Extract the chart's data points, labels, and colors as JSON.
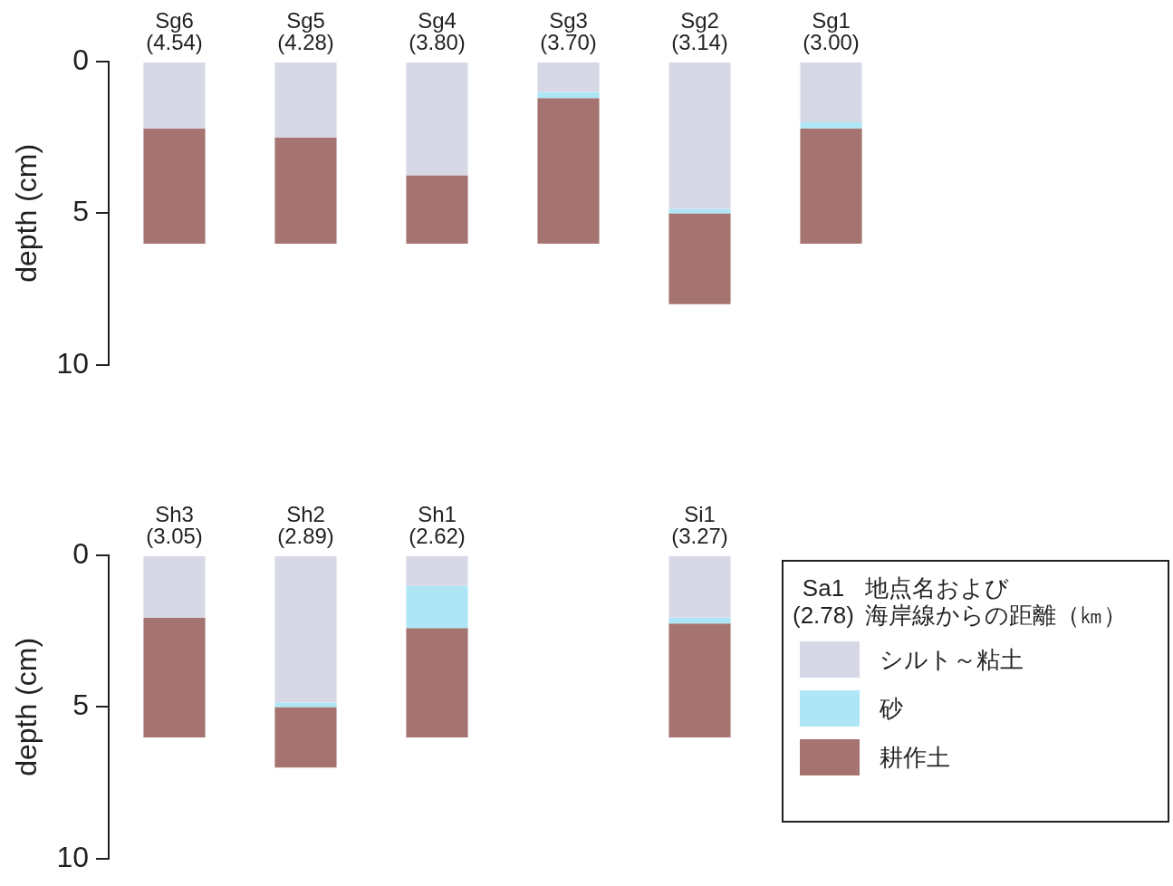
{
  "chart_data": [
    {
      "type": "bar",
      "stacked": true,
      "categories": [
        "Sg6\n(4.54)",
        "Sg5\n(4.28)",
        "Sg4\n(3.80)",
        "Sg3\n(3.70)",
        "Sg2\n(3.14)",
        "Sg1\n(3.00)"
      ],
      "ylabel": "depth (cm)",
      "ylim": [
        10,
        0
      ],
      "yticks": [
        0,
        5,
        10
      ],
      "grid": false,
      "legend": false,
      "series": [
        {
          "color": "#d6d8e6",
          "values": [
            2.2,
            2.5,
            3.75,
            1.0,
            4.85,
            2.0
          ]
        },
        {
          "color": "#aee6f6",
          "values": [
            null,
            null,
            null,
            0.2,
            0.15,
            0.2
          ]
        },
        {
          "color": "#a57470",
          "values": [
            3.8,
            3.5,
            2.25,
            4.8,
            3.0,
            3.8
          ]
        }
      ]
    },
    {
      "type": "bar",
      "stacked": true,
      "categories": [
        "Sh3\n(3.05)",
        "Sh2\n(2.89)",
        "Sh1\n(2.62)",
        null,
        "Si1\n(3.27)"
      ],
      "ylabel": "depth (cm)",
      "ylim": [
        10,
        0
      ],
      "yticks": [
        0,
        5,
        10
      ],
      "grid": false,
      "legend": "right",
      "annotations": [
        "Sa1\n(2.78)",
        "地点名および",
        "海岸線からの距離（㎞）"
      ],
      "series": [
        {
          "name": "シルト～粘土",
          "color": "#d6d8e6",
          "values": [
            2.05,
            4.85,
            1.0,
            null,
            2.05
          ]
        },
        {
          "name": "砂",
          "color": "#aee6f6",
          "values": [
            null,
            0.15,
            1.4,
            null,
            0.2
          ]
        },
        {
          "name": "耕作土",
          "color": "#a57470",
          "values": [
            3.95,
            2.0,
            3.6,
            null,
            3.75
          ]
        }
      ]
    }
  ]
}
